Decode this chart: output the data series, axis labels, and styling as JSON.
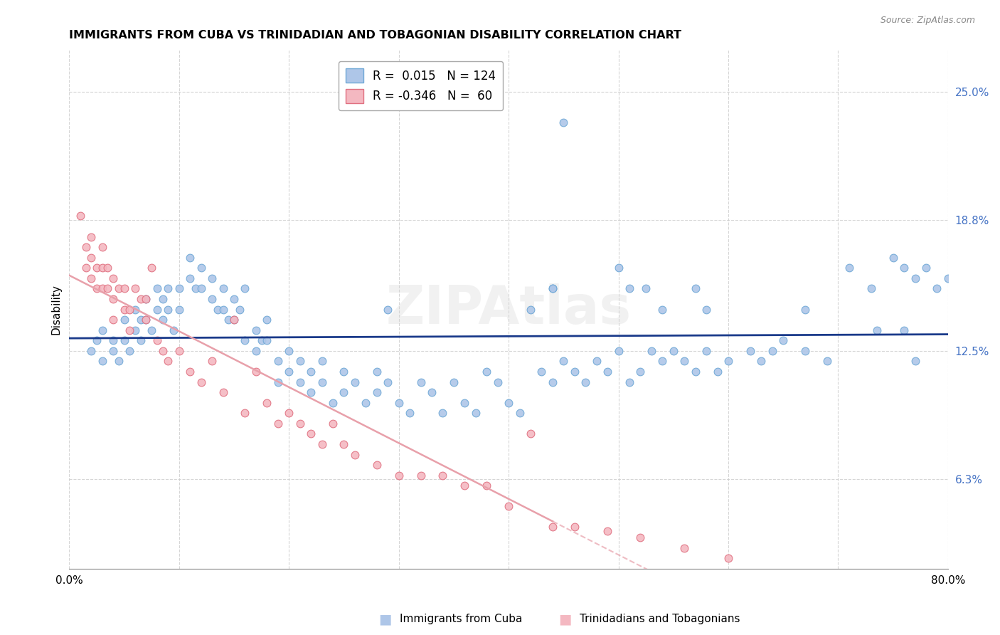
{
  "title": "IMMIGRANTS FROM CUBA VS TRINIDADIAN AND TOBAGONIAN DISABILITY CORRELATION CHART",
  "source": "Source: ZipAtlas.com",
  "ylabel": "Disability",
  "xlim": [
    0.0,
    0.8
  ],
  "ylim": [
    0.02,
    0.27
  ],
  "yticks": [
    0.063,
    0.125,
    0.188,
    0.25
  ],
  "ytick_labels": [
    "6.3%",
    "12.5%",
    "18.8%",
    "25.0%"
  ],
  "xticks": [
    0.0,
    0.1,
    0.2,
    0.3,
    0.4,
    0.5,
    0.6,
    0.7,
    0.8
  ],
  "cuba_color": "#aec6e8",
  "cuba_edge": "#6fa8d6",
  "tt_color": "#f4b8c1",
  "tt_edge": "#e07080",
  "cuba_line_color": "#1a3a8a",
  "tt_line_color": "#e8a0aa",
  "watermark": "ZIPAtlas",
  "cuba_x": [
    0.02,
    0.025,
    0.03,
    0.03,
    0.04,
    0.04,
    0.045,
    0.05,
    0.05,
    0.055,
    0.06,
    0.06,
    0.065,
    0.065,
    0.07,
    0.07,
    0.075,
    0.08,
    0.08,
    0.085,
    0.085,
    0.09,
    0.09,
    0.095,
    0.1,
    0.1,
    0.11,
    0.11,
    0.115,
    0.12,
    0.12,
    0.13,
    0.13,
    0.135,
    0.14,
    0.14,
    0.145,
    0.15,
    0.15,
    0.155,
    0.16,
    0.17,
    0.17,
    0.175,
    0.18,
    0.18,
    0.19,
    0.19,
    0.2,
    0.2,
    0.21,
    0.21,
    0.22,
    0.22,
    0.23,
    0.23,
    0.24,
    0.25,
    0.25,
    0.26,
    0.27,
    0.28,
    0.28,
    0.29,
    0.3,
    0.31,
    0.32,
    0.33,
    0.34,
    0.35,
    0.36,
    0.37,
    0.38,
    0.39,
    0.4,
    0.41,
    0.43,
    0.44,
    0.45,
    0.46,
    0.47,
    0.48,
    0.49,
    0.5,
    0.51,
    0.52,
    0.53,
    0.54,
    0.55,
    0.56,
    0.57,
    0.58,
    0.59,
    0.6,
    0.62,
    0.63,
    0.64,
    0.65,
    0.67,
    0.69,
    0.71,
    0.73,
    0.75,
    0.76,
    0.77,
    0.78,
    0.79,
    0.8,
    0.42,
    0.44,
    0.29,
    0.16,
    0.44,
    0.45,
    0.5,
    0.51,
    0.525,
    0.54,
    0.57,
    0.58,
    0.67,
    0.735,
    0.76,
    0.77
  ],
  "cuba_y": [
    0.125,
    0.13,
    0.12,
    0.135,
    0.13,
    0.125,
    0.12,
    0.14,
    0.13,
    0.125,
    0.145,
    0.135,
    0.14,
    0.13,
    0.15,
    0.14,
    0.135,
    0.155,
    0.145,
    0.15,
    0.14,
    0.155,
    0.145,
    0.135,
    0.155,
    0.145,
    0.17,
    0.16,
    0.155,
    0.165,
    0.155,
    0.15,
    0.16,
    0.145,
    0.155,
    0.145,
    0.14,
    0.15,
    0.14,
    0.145,
    0.155,
    0.135,
    0.125,
    0.13,
    0.14,
    0.13,
    0.12,
    0.11,
    0.125,
    0.115,
    0.12,
    0.11,
    0.105,
    0.115,
    0.12,
    0.11,
    0.1,
    0.115,
    0.105,
    0.11,
    0.1,
    0.115,
    0.105,
    0.11,
    0.1,
    0.095,
    0.11,
    0.105,
    0.095,
    0.11,
    0.1,
    0.095,
    0.115,
    0.11,
    0.1,
    0.095,
    0.115,
    0.11,
    0.12,
    0.115,
    0.11,
    0.12,
    0.115,
    0.125,
    0.11,
    0.115,
    0.125,
    0.12,
    0.125,
    0.12,
    0.115,
    0.125,
    0.115,
    0.12,
    0.125,
    0.12,
    0.125,
    0.13,
    0.125,
    0.12,
    0.165,
    0.155,
    0.17,
    0.165,
    0.16,
    0.165,
    0.155,
    0.16,
    0.145,
    0.155,
    0.145,
    0.13,
    0.155,
    0.235,
    0.165,
    0.155,
    0.155,
    0.145,
    0.155,
    0.145,
    0.145,
    0.135,
    0.135,
    0.12
  ],
  "tt_x": [
    0.01,
    0.015,
    0.015,
    0.02,
    0.02,
    0.02,
    0.025,
    0.025,
    0.03,
    0.03,
    0.03,
    0.035,
    0.035,
    0.04,
    0.04,
    0.04,
    0.045,
    0.05,
    0.05,
    0.055,
    0.055,
    0.06,
    0.065,
    0.07,
    0.07,
    0.075,
    0.08,
    0.085,
    0.09,
    0.1,
    0.11,
    0.12,
    0.13,
    0.14,
    0.15,
    0.16,
    0.17,
    0.18,
    0.19,
    0.2,
    0.21,
    0.22,
    0.23,
    0.24,
    0.25,
    0.26,
    0.28,
    0.3,
    0.32,
    0.34,
    0.36,
    0.38,
    0.4,
    0.42,
    0.44,
    0.46,
    0.49,
    0.52,
    0.56,
    0.6
  ],
  "tt_y": [
    0.19,
    0.175,
    0.165,
    0.18,
    0.17,
    0.16,
    0.165,
    0.155,
    0.175,
    0.165,
    0.155,
    0.165,
    0.155,
    0.16,
    0.15,
    0.14,
    0.155,
    0.155,
    0.145,
    0.145,
    0.135,
    0.155,
    0.15,
    0.15,
    0.14,
    0.165,
    0.13,
    0.125,
    0.12,
    0.125,
    0.115,
    0.11,
    0.12,
    0.105,
    0.14,
    0.095,
    0.115,
    0.1,
    0.09,
    0.095,
    0.09,
    0.085,
    0.08,
    0.09,
    0.08,
    0.075,
    0.07,
    0.065,
    0.065,
    0.065,
    0.06,
    0.06,
    0.05,
    0.085,
    0.04,
    0.04,
    0.038,
    0.035,
    0.03,
    0.025
  ]
}
